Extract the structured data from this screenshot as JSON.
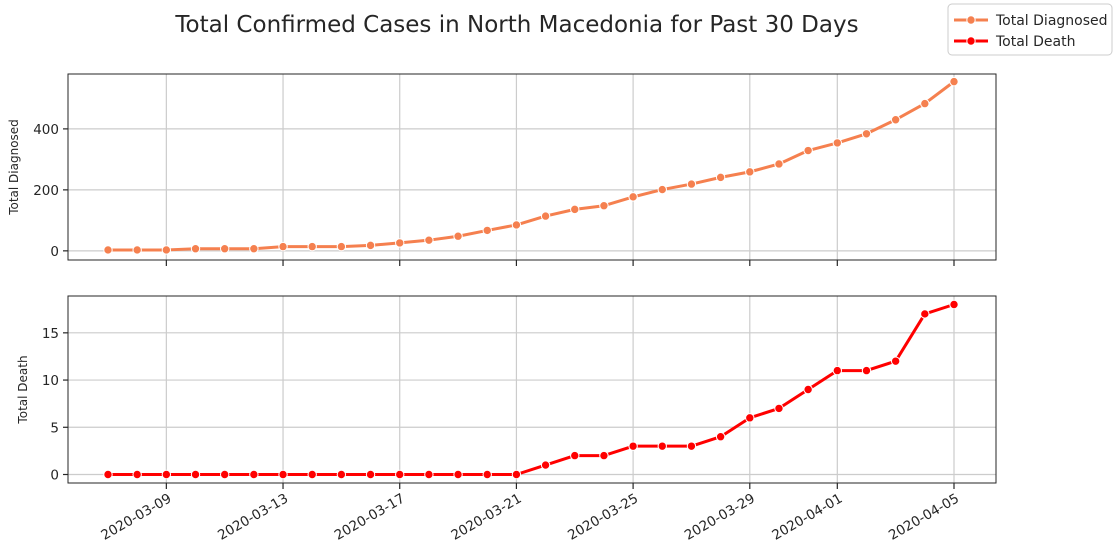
{
  "chart_data": {
    "title": "Total Confirmed Cases in North Macedonia for Past 30 Days",
    "type": "line",
    "x": [
      "2020-03-07",
      "2020-03-08",
      "2020-03-09",
      "2020-03-10",
      "2020-03-11",
      "2020-03-12",
      "2020-03-13",
      "2020-03-14",
      "2020-03-15",
      "2020-03-16",
      "2020-03-17",
      "2020-03-18",
      "2020-03-19",
      "2020-03-20",
      "2020-03-21",
      "2020-03-22",
      "2020-03-23",
      "2020-03-24",
      "2020-03-25",
      "2020-03-26",
      "2020-03-27",
      "2020-03-28",
      "2020-03-29",
      "2020-03-30",
      "2020-03-31",
      "2020-04-01",
      "2020-04-02",
      "2020-04-03",
      "2020-04-04",
      "2020-04-05"
    ],
    "x_ticks": [
      "2020-03-09",
      "2020-03-13",
      "2020-03-17",
      "2020-03-21",
      "2020-03-25",
      "2020-03-29",
      "2020-04-01",
      "2020-04-05"
    ],
    "legend": {
      "placement": "top-right",
      "entries": [
        "Total Diagnosed",
        "Total Death"
      ]
    },
    "grid": true,
    "subplots": [
      {
        "ylabel": "Total Diagnosed",
        "ylim": [
          -30,
          580
        ],
        "yticks": [
          0,
          200,
          400
        ],
        "series": [
          {
            "name": "Total Diagnosed",
            "color": "#f5804f",
            "values": [
              3,
              3,
              3,
              7,
              7,
              7,
              14,
              14,
              14,
              18,
              26,
              35,
              48,
              67,
              85,
              114,
              136,
              148,
              177,
              201,
              219,
              241,
              259,
              285,
              329,
              354,
              384,
              430,
              483,
              555
            ]
          }
        ]
      },
      {
        "ylabel": "Total Death",
        "ylim": [
          -0.9,
          18.9
        ],
        "yticks": [
          0,
          5,
          10,
          15
        ],
        "series": [
          {
            "name": "Total Death",
            "color": "#ff0000",
            "values": [
              0,
              0,
              0,
              0,
              0,
              0,
              0,
              0,
              0,
              0,
              0,
              0,
              0,
              0,
              0,
              1,
              2,
              2,
              3,
              3,
              3,
              4,
              6,
              7,
              9,
              11,
              11,
              12,
              17,
              18
            ]
          }
        ]
      }
    ]
  }
}
